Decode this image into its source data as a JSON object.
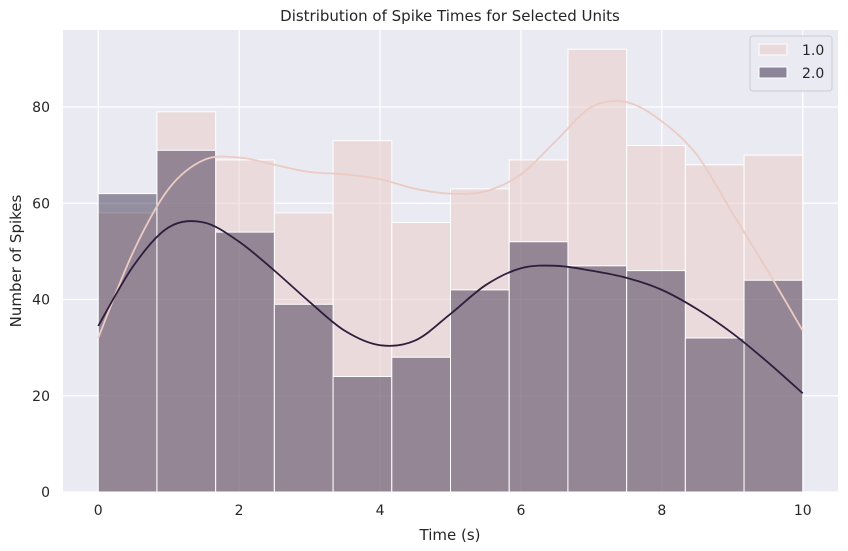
{
  "chart_data": {
    "type": "histogram",
    "title": "Distribution of Spike Times for Selected Units",
    "xlabel": "Time (s)",
    "ylabel": "Number of Spikes",
    "xlim": [
      -0.5,
      10.5
    ],
    "ylim": [
      0,
      96
    ],
    "xticks": [
      0,
      2,
      4,
      6,
      8,
      10
    ],
    "yticks": [
      0,
      20,
      40,
      60,
      80
    ],
    "bin_edges": [
      0,
      0.8333,
      1.6667,
      2.5,
      3.3333,
      4.1667,
      5.0,
      5.8333,
      6.6667,
      7.5,
      8.3333,
      9.1667,
      10.0
    ],
    "legend_position": "top-right",
    "grid": true,
    "series": [
      {
        "name": "1.0",
        "color": "#e9c9c4",
        "line_color": "#ebcbc3",
        "values": [
          58,
          79,
          69,
          58,
          73,
          56,
          63,
          69,
          92,
          72,
          68,
          70
        ],
        "kde": {
          "x": [
            0,
            0.5,
            1.0,
            1.5,
            2.0,
            2.5,
            3.0,
            3.5,
            4.0,
            4.5,
            5.0,
            5.5,
            6.0,
            6.5,
            7.0,
            7.5,
            8.0,
            8.5,
            9.0,
            9.5,
            10.0
          ],
          "y": [
            32,
            50,
            63,
            69,
            69.5,
            68,
            66.5,
            66,
            65,
            63,
            62,
            62.5,
            66,
            73,
            80,
            81,
            77,
            70,
            58,
            46,
            33.5
          ]
        }
      },
      {
        "name": "2.0",
        "color": "#2d1e3e",
        "line_color": "#2d1e3e",
        "values": [
          62,
          71,
          54,
          39,
          24,
          28,
          42,
          52,
          47,
          46,
          32,
          44
        ],
        "kde": {
          "x": [
            0,
            0.5,
            1.0,
            1.5,
            2.0,
            2.5,
            3.0,
            3.5,
            4.0,
            4.5,
            5.0,
            5.5,
            6.0,
            6.5,
            7.0,
            7.5,
            8.0,
            8.5,
            9.0,
            9.5,
            10.0
          ],
          "y": [
            34.5,
            47,
            55,
            56,
            52,
            46,
            39.5,
            33.5,
            30.5,
            31.5,
            37,
            43,
            46.5,
            47,
            46,
            44.5,
            42,
            38,
            33,
            27,
            20.5
          ]
        }
      }
    ]
  }
}
